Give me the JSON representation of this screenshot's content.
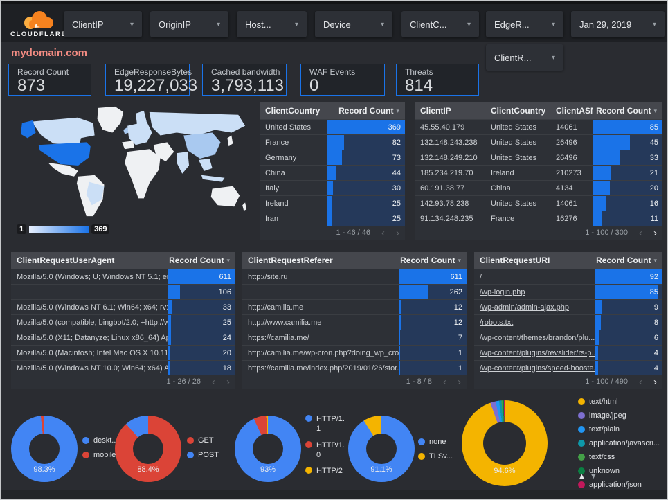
{
  "icons": {
    "caret": "▾",
    "sort": "▾",
    "prev": "‹",
    "next": "›",
    "legend_up": "▲",
    "legend_down": "▼"
  },
  "header": {
    "brand": "CLOUDFLARE",
    "filters": [
      "ClientIP",
      "OriginIP",
      "Host...",
      "Device",
      "ClientC...",
      "EdgeR..."
    ],
    "date_filter": "Jan 29, 2019",
    "secondary_filter": "ClientR..."
  },
  "title": "mydomain.com",
  "scorecards": [
    {
      "label": "Record Count",
      "value": "873"
    },
    {
      "label": "EdgeResponseBytes",
      "value": "19,227,033"
    },
    {
      "label": "Cached bandwidth",
      "value": "3,793,113"
    },
    {
      "label": "WAF Events",
      "value": "0"
    },
    {
      "label": "Threats",
      "value": "814"
    }
  ],
  "map": {
    "legend_min": "1",
    "legend_max": "369"
  },
  "tables": {
    "client_country": {
      "headers": [
        "ClientCountry",
        "Record Count"
      ],
      "rows": [
        {
          "dim": "United States",
          "count": 369
        },
        {
          "dim": "France",
          "count": 82
        },
        {
          "dim": "Germany",
          "count": 73
        },
        {
          "dim": "China",
          "count": 44
        },
        {
          "dim": "Italy",
          "count": 30
        },
        {
          "dim": "Ireland",
          "count": 25
        },
        {
          "dim": "Iran",
          "count": 25
        }
      ],
      "pagination": "1 - 46 / 46"
    },
    "client_ip": {
      "headers": [
        "ClientIP",
        "ClientCountry",
        "ClientASN",
        "Record Count"
      ],
      "rows": [
        {
          "ip": "45.55.40.179",
          "country": "United States",
          "asn": "14061",
          "count": 85
        },
        {
          "ip": "132.148.243.238",
          "country": "United States",
          "asn": "26496",
          "count": 45
        },
        {
          "ip": "132.148.249.210",
          "country": "United States",
          "asn": "26496",
          "count": 33
        },
        {
          "ip": "185.234.219.70",
          "country": "Ireland",
          "asn": "210273",
          "count": 21
        },
        {
          "ip": "60.191.38.77",
          "country": "China",
          "asn": "4134",
          "count": 20
        },
        {
          "ip": "142.93.78.238",
          "country": "United States",
          "asn": "14061",
          "count": 16
        },
        {
          "ip": "91.134.248.235",
          "country": "France",
          "asn": "16276",
          "count": 11
        }
      ],
      "pagination": "1 - 100 / 300"
    },
    "user_agent": {
      "headers": [
        "ClientRequestUserAgent",
        "Record Count"
      ],
      "rows": [
        {
          "dim": "Mozilla/5.0 (Windows; U; Windows NT 5.1; en-U...",
          "count": 611
        },
        {
          "dim": "",
          "count": 106
        },
        {
          "dim": "Mozilla/5.0 (Windows NT 6.1; Win64; x64; rv:64...",
          "count": 33
        },
        {
          "dim": "Mozilla/5.0 (compatible; bingbot/2.0; +http://w...",
          "count": 25
        },
        {
          "dim": "Mozilla/5.0 (X11; Datanyze; Linux x86_64) Appl...",
          "count": 24
        },
        {
          "dim": "Mozilla/5.0 (Macintosh; Intel Mac OS X 10.11; r...",
          "count": 20
        },
        {
          "dim": "Mozilla/5.0 (Windows NT 10.0; Win64; x64) App...",
          "count": 18
        }
      ],
      "pagination": "1 - 26 / 26"
    },
    "referer": {
      "headers": [
        "ClientRequestReferer",
        "Record Count"
      ],
      "rows": [
        {
          "dim": "http://site.ru",
          "count": 611
        },
        {
          "dim": "",
          "count": 262
        },
        {
          "dim": "http://camilia.me",
          "count": 12
        },
        {
          "dim": "http://www.camilia.me",
          "count": 12
        },
        {
          "dim": "https://camilia.me/",
          "count": 7
        },
        {
          "dim": "http://camilia.me/wp-cron.php?doing_wp_cron...",
          "count": 1
        },
        {
          "dim": "https://camilia.me/index.php/2019/01/26/stor...",
          "count": 1
        }
      ],
      "pagination": "1 - 8 / 8"
    },
    "uri": {
      "headers": [
        "ClientRequestURI",
        "Record Count"
      ],
      "rows": [
        {
          "dim": "/",
          "count": 92
        },
        {
          "dim": "/wp-login.php",
          "count": 85
        },
        {
          "dim": "/wp-admin/admin-ajax.php",
          "count": 9
        },
        {
          "dim": "/robots.txt",
          "count": 8
        },
        {
          "dim": "/wp-content/themes/brandon/plu...",
          "count": 6
        },
        {
          "dim": "/wp-content/plugins/revslider/rs-p...",
          "count": 4
        },
        {
          "dim": "/wp-content/plugins/speed-booste...",
          "count": 4
        }
      ],
      "pagination": "1 - 100 / 490"
    }
  },
  "chart_data": [
    {
      "type": "choropleth",
      "name": "client-country-map",
      "metric": "Record Count",
      "range": [
        1,
        369
      ],
      "top_values": {
        "United States": 369,
        "France": 82,
        "Germany": 73,
        "China": 44,
        "Italy": 30,
        "Ireland": 25,
        "Iran": 25
      }
    },
    {
      "type": "pie",
      "name": "device-type",
      "center_label": "98.3%",
      "legend_position": "right",
      "slices": [
        {
          "label": "deskt...",
          "value_pct": 98.3,
          "color": "#4285f4"
        },
        {
          "label": "mobile",
          "value_pct": 1.7,
          "color": "#db4437"
        }
      ]
    },
    {
      "type": "pie",
      "name": "request-method",
      "center_label": "88.4%",
      "legend_position": "right",
      "slices": [
        {
          "label": "GET",
          "value_pct": 88.4,
          "color": "#db4437"
        },
        {
          "label": "POST",
          "value_pct": 11.6,
          "color": "#4285f4"
        }
      ]
    },
    {
      "type": "pie",
      "name": "http-protocol",
      "center_label": "93%",
      "legend_position": "right",
      "slices": [
        {
          "label": "HTTP/1.1",
          "value_pct": 93,
          "color": "#4285f4"
        },
        {
          "label": "HTTP/1.0",
          "value_pct": 6.2,
          "color": "#db4437"
        },
        {
          "label": "HTTP/2",
          "value_pct": 0.8,
          "color": "#f4b400"
        }
      ]
    },
    {
      "type": "pie",
      "name": "tls-version",
      "center_label": "91.1%",
      "legend_position": "right",
      "slices": [
        {
          "label": "none",
          "value_pct": 91.1,
          "color": "#4285f4"
        },
        {
          "label": "TLSv...",
          "value_pct": 8.9,
          "color": "#f4b400"
        }
      ]
    },
    {
      "type": "pie",
      "name": "content-type",
      "center_label": "94.6%",
      "legend_position": "right",
      "slices": [
        {
          "label": "text/html",
          "value_pct": 94.6,
          "color": "#f4b400"
        },
        {
          "label": "image/jpeg",
          "value_pct": 2.0,
          "color": "#7d6fd0"
        },
        {
          "label": "text/plain",
          "value_pct": 1.3,
          "color": "#2196f3"
        },
        {
          "label": "application/javascri...",
          "value_pct": 0.9,
          "color": "#0e98a8"
        },
        {
          "label": "text/css",
          "value_pct": 0.5,
          "color": "#43a047"
        },
        {
          "label": "unknown",
          "value_pct": 0.4,
          "color": "#0b8043"
        },
        {
          "label": "application/json",
          "value_pct": 0.3,
          "color": "#c2185b"
        }
      ]
    }
  ]
}
